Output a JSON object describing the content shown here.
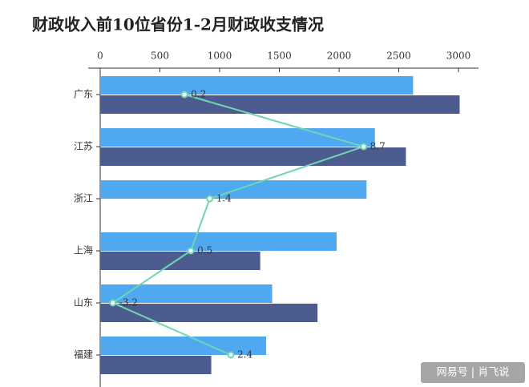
{
  "chart_data": {
    "type": "bar",
    "orientation": "horizontal",
    "title": "财政收入前10位省份1-2月财政收支情况",
    "categories": [
      "广东",
      "江苏",
      "浙江",
      "上海",
      "山东",
      "福建"
    ],
    "series": [
      {
        "color": "#4fa8f0",
        "values": [
          2620,
          2300,
          2230,
          1980,
          1440,
          1390
        ]
      },
      {
        "color": "#4d5c8f",
        "values": [
          3010,
          2560,
          null,
          1340,
          1820,
          930
        ]
      },
      {
        "type": "line",
        "axis": "x2",
        "color": "#6fd6b4",
        "values": [
          0.2,
          8.7,
          1.4,
          0.5,
          -3.2,
          2.4
        ]
      }
    ],
    "xlim": [
      0,
      3000
    ],
    "xticks": [
      0,
      500,
      1000,
      1500,
      2000,
      2500,
      3000
    ],
    "x2lim": [
      -3.8,
      13.2
    ],
    "watermark": "网易号 | 肖飞说"
  }
}
